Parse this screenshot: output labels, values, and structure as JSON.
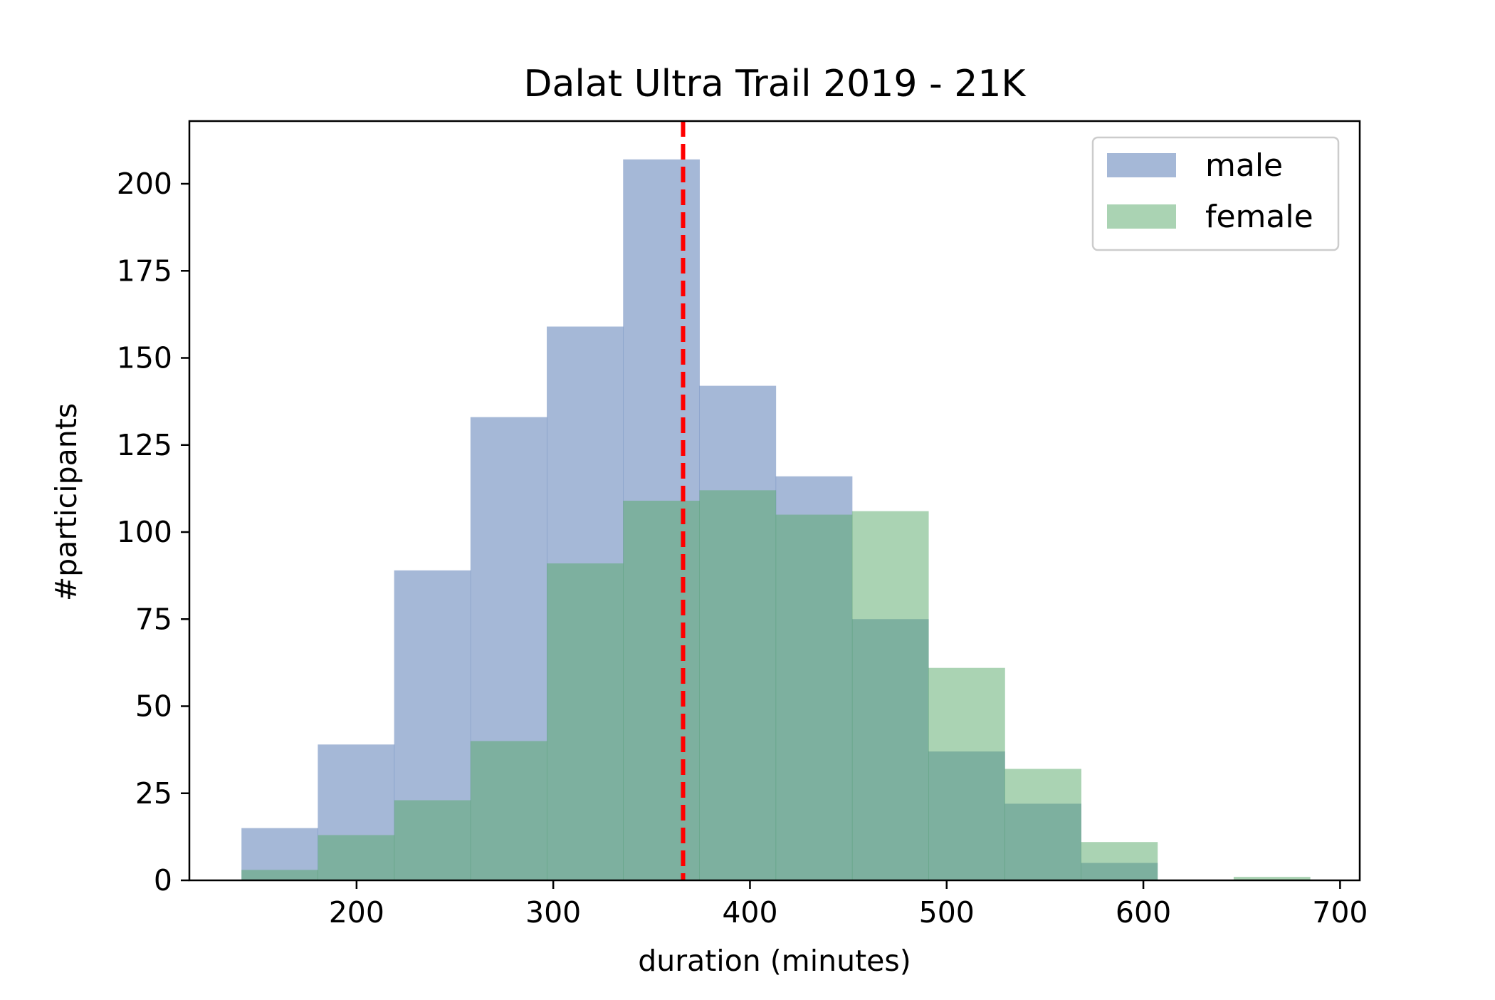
{
  "chart_data": {
    "type": "histogram",
    "title": "Dalat Ultra Trail 2019 - 21K",
    "xlabel": "duration (minutes)",
    "ylabel": "#participants",
    "xlim": [
      115,
      710
    ],
    "ylim": [
      0,
      218
    ],
    "xticks": [
      200,
      300,
      400,
      500,
      600,
      700
    ],
    "yticks": [
      0,
      25,
      50,
      75,
      100,
      125,
      150,
      175,
      200
    ],
    "bin_edges": [
      141.5,
      180.3,
      219.1,
      257.9,
      296.7,
      335.5,
      374.3,
      413.1,
      451.9,
      490.7,
      529.5,
      568.3,
      607.1,
      645.9,
      684.7
    ],
    "series": [
      {
        "name": "male",
        "color": "#4c72b0",
        "alpha": 0.5,
        "values": [
          15,
          39,
          89,
          133,
          159,
          207,
          142,
          116,
          75,
          37,
          22,
          5,
          0,
          0
        ]
      },
      {
        "name": "female",
        "color": "#55a868",
        "alpha": 0.5,
        "values": [
          3,
          13,
          23,
          40,
          91,
          109,
          112,
          105,
          106,
          61,
          32,
          11,
          0,
          1
        ]
      }
    ],
    "reference_line": {
      "x": 366,
      "color": "#ff0000",
      "style": "dashed"
    },
    "legend_position": "upper right",
    "grid": false
  }
}
